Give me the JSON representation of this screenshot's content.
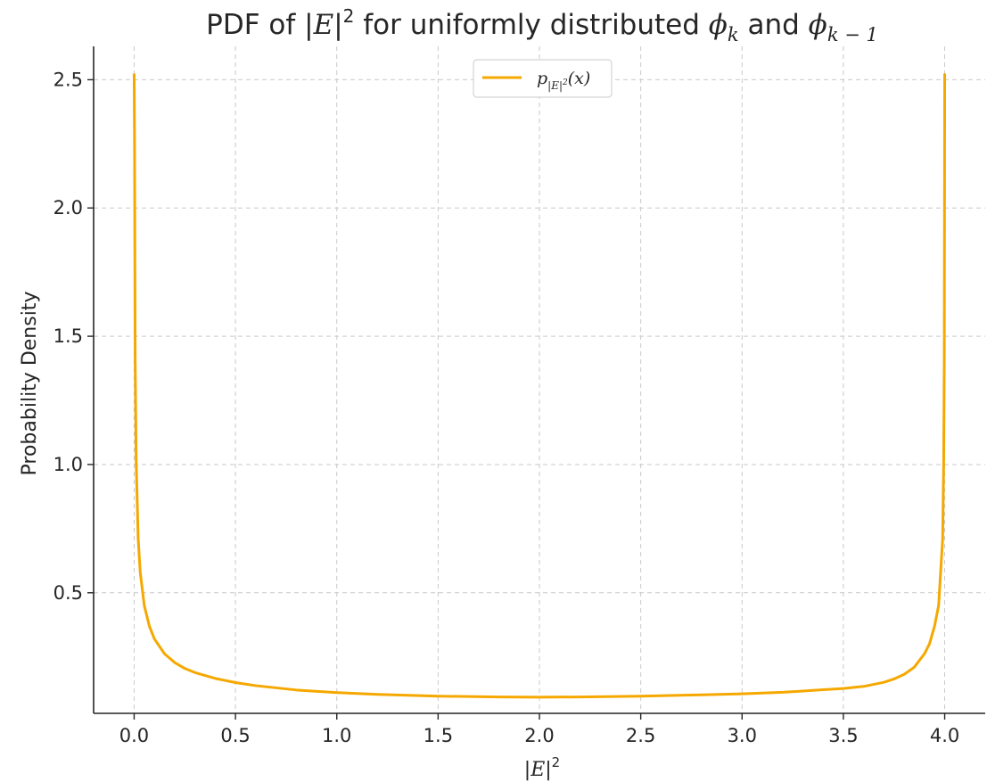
{
  "chart_data": {
    "type": "line",
    "title": "PDF of |E|² for uniformly distributed φ_k and φ_{k−1}",
    "title_parts": {
      "prefix": "PDF of |",
      "E": "E",
      "sq": "2",
      "mid": " for uniformly distributed ",
      "phi1": "ϕ",
      "sub1": "k",
      "and": " and ",
      "phi2": "ϕ",
      "sub2": "k − 1"
    },
    "xlabel": "|E|²",
    "xlabel_parts": {
      "bar_open": "|",
      "E": "E",
      "bar_close": "|",
      "sq": "2"
    },
    "ylabel": "Probability Density",
    "xlim": [
      -0.2,
      4.2
    ],
    "ylim": [
      0.03,
      2.63
    ],
    "x_ticks": [
      0.0,
      0.5,
      1.0,
      1.5,
      2.0,
      2.5,
      3.0,
      3.5,
      4.0
    ],
    "x_tick_labels": [
      "0.0",
      "0.5",
      "1.0",
      "1.5",
      "2.0",
      "2.5",
      "3.0",
      "3.5",
      "4.0"
    ],
    "y_ticks": [
      0.5,
      1.0,
      1.5,
      2.0,
      2.5
    ],
    "y_tick_labels": [
      "0.5",
      "1.0",
      "1.5",
      "2.0",
      "2.5"
    ],
    "grid": true,
    "legend_position": "top-center",
    "series": [
      {
        "name": "p_{|E|²}(x)",
        "color": "#f5a800",
        "x": [
          0.0,
          0.002,
          0.005,
          0.01,
          0.02,
          0.03,
          0.05,
          0.075,
          0.1,
          0.15,
          0.2,
          0.25,
          0.3,
          0.4,
          0.5,
          0.6,
          0.8,
          1.0,
          1.2,
          1.5,
          1.8,
          2.0,
          2.2,
          2.5,
          2.8,
          3.0,
          3.2,
          3.4,
          3.5,
          3.6,
          3.7,
          3.75,
          3.8,
          3.85,
          3.9,
          3.925,
          3.95,
          3.97,
          3.98,
          3.99,
          3.995,
          3.998,
          4.0
        ],
        "y": [
          2.52,
          2.25,
          1.42,
          1.01,
          0.71,
          0.58,
          0.45,
          0.37,
          0.32,
          0.262,
          0.228,
          0.205,
          0.189,
          0.166,
          0.15,
          0.138,
          0.121,
          0.111,
          0.104,
          0.097,
          0.094,
          0.093,
          0.094,
          0.097,
          0.102,
          0.106,
          0.112,
          0.122,
          0.127,
          0.135,
          0.151,
          0.164,
          0.182,
          0.21,
          0.262,
          0.301,
          0.37,
          0.45,
          0.58,
          0.71,
          1.01,
          1.42,
          2.52
        ]
      }
    ],
    "legend": {
      "p": "p",
      "sub_open": "|",
      "sub_E": "E",
      "sub_close": "|",
      "sub_sq": "2",
      "arg": "(x)"
    }
  }
}
